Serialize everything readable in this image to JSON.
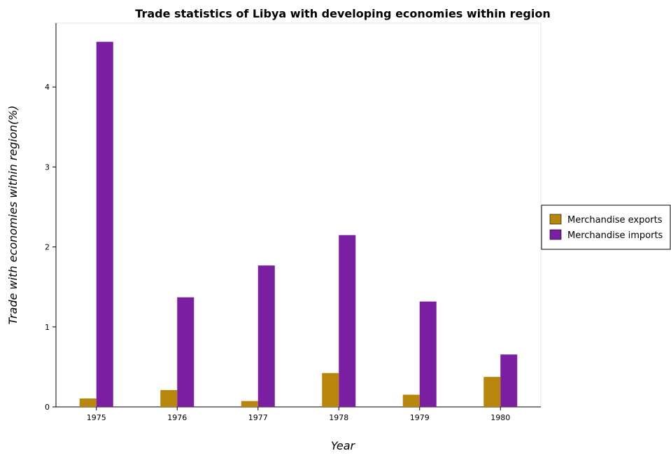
{
  "chart_data": {
    "type": "bar",
    "title": "Trade statistics of Libya with developing economies within region",
    "xlabel": "Year",
    "ylabel": "Trade with economies within region(%)",
    "categories": [
      "1975",
      "1976",
      "1977",
      "1978",
      "1979",
      "1980"
    ],
    "series": [
      {
        "name": "Merchandise exports",
        "color": "#b8860b",
        "values": [
          0.105,
          0.21,
          0.073,
          0.423,
          0.152,
          0.375
        ]
      },
      {
        "name": "Merchandise imports",
        "color": "#7b1fa2",
        "values": [
          4.565,
          1.37,
          1.768,
          2.148,
          1.317,
          0.655
        ]
      }
    ],
    "ylim": [
      0,
      4.8
    ],
    "yticks": [
      0,
      1,
      2,
      3,
      4
    ],
    "grid": false,
    "legend_position": "right"
  }
}
